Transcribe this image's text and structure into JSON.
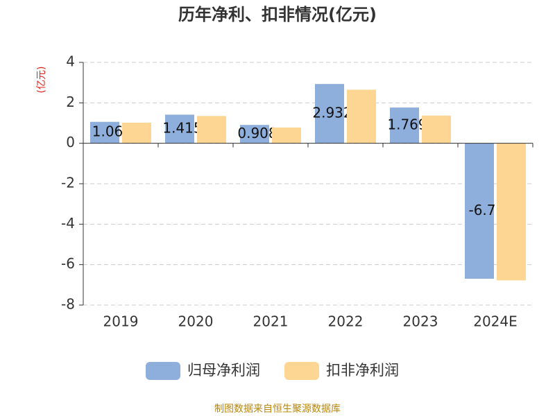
{
  "chart_data": {
    "type": "bar",
    "title": "历年净利、扣非情况(亿元)",
    "y_label": "(亿元)",
    "categories": [
      "2019",
      "2020",
      "2021",
      "2022",
      "2023",
      "2024E"
    ],
    "series": [
      {
        "name": "归母净利润",
        "color": "#8eaedb",
        "values": [
          1.06,
          1.415,
          0.908,
          2.932,
          1.769,
          -6.7
        ]
      },
      {
        "name": "扣非净利润",
        "color": "#fdd694",
        "values": [
          1.02,
          1.35,
          0.78,
          2.65,
          1.37,
          -6.78
        ]
      }
    ],
    "ylim": [
      -8,
      4
    ],
    "yticks": [
      4,
      2,
      0,
      -2,
      -4,
      -6,
      -8
    ],
    "grid": true,
    "source": "制图数据来自恒生聚源数据库"
  }
}
